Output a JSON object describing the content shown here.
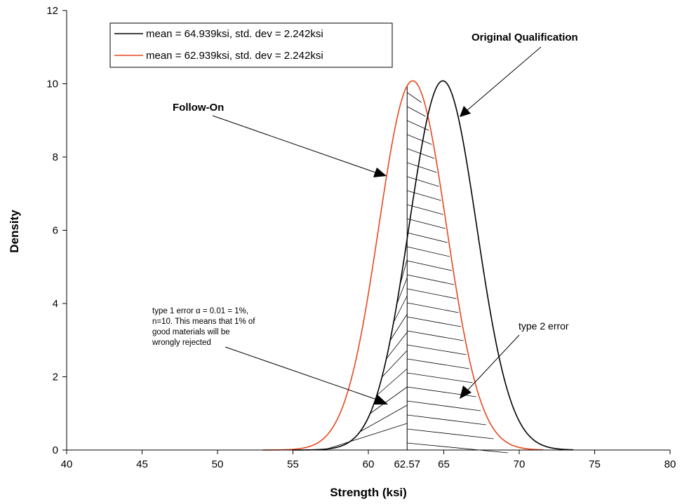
{
  "chart_data": {
    "type": "line",
    "xlabel": "Strength (ksi)",
    "ylabel": "Density",
    "xlim": [
      40,
      80
    ],
    "ylim": [
      0,
      12
    ],
    "x_ticks": [
      "40",
      "45",
      "50",
      "55",
      "60",
      "65",
      "70",
      "75",
      "80"
    ],
    "y_ticks": [
      "0",
      "2",
      "4",
      "6",
      "8",
      "10",
      "12"
    ],
    "grid": false,
    "legend_position": "top-left",
    "series": [
      {
        "name": "mean = 64.939ksi, std. dev = 2.242ksi",
        "mean": 64.939,
        "std_dev": 2.242,
        "peak_density": 10.08,
        "color": "#000000"
      },
      {
        "name": "mean = 62.939ksi, std. dev = 2.242ksi",
        "mean": 62.939,
        "std_dev": 2.242,
        "peak_density": 10.08,
        "color": "#e8471e"
      }
    ],
    "critical_value": 62.57,
    "critical_value_label": "62.57",
    "annotations": {
      "original": "Original Qualification",
      "followon": "Follow-On",
      "type1_lines": [
        "type 1 error α = 0.01 = 1%,",
        "n=10.  This means that 1% of",
        "good materials will be",
        "wrongly rejected"
      ],
      "type2": "type 2 error"
    }
  }
}
